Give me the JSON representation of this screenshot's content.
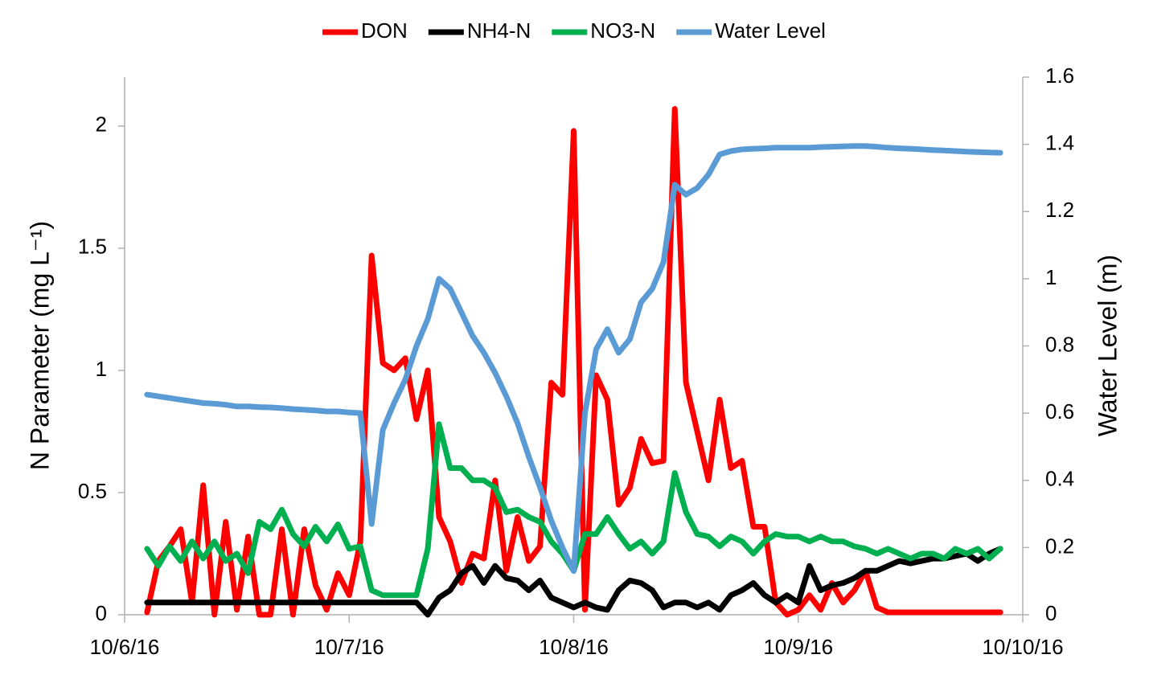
{
  "chart_data": {
    "type": "line",
    "ylabel": "N Parameter (mg L⁻¹)",
    "y2label": "Water Level (m)",
    "xlim": [
      0,
      4
    ],
    "xticks": [
      {
        "value": 0,
        "label": "10/6/16"
      },
      {
        "value": 1,
        "label": "10/7/16"
      },
      {
        "value": 2,
        "label": "10/8/16"
      },
      {
        "value": 3,
        "label": "10/9/16"
      },
      {
        "value": 4,
        "label": "10/10/16"
      }
    ],
    "ylim": [
      0,
      2.2
    ],
    "yticks": [
      0,
      0.5,
      1,
      1.5,
      2
    ],
    "y2lim": [
      0,
      1.6
    ],
    "y2ticks": [
      0,
      0.2,
      0.4,
      0.6,
      0.8,
      1,
      1.2,
      1.4,
      1.6
    ],
    "legend": "top",
    "x": [
      0.1,
      0.15,
      0.2,
      0.25,
      0.3,
      0.35,
      0.4,
      0.45,
      0.5,
      0.55,
      0.6,
      0.65,
      0.7,
      0.75,
      0.8,
      0.85,
      0.9,
      0.95,
      1.0,
      1.05,
      1.1,
      1.15,
      1.2,
      1.25,
      1.3,
      1.35,
      1.4,
      1.45,
      1.5,
      1.55,
      1.6,
      1.65,
      1.7,
      1.75,
      1.8,
      1.85,
      1.9,
      1.95,
      2.0,
      2.05,
      2.1,
      2.15,
      2.2,
      2.25,
      2.3,
      2.35,
      2.4,
      2.45,
      2.5,
      2.55,
      2.6,
      2.65,
      2.7,
      2.75,
      2.8,
      2.85,
      2.9,
      2.95,
      3.0,
      3.05,
      3.1,
      3.15,
      3.2,
      3.25,
      3.3,
      3.35,
      3.4,
      3.45,
      3.5,
      3.55,
      3.6,
      3.65,
      3.7,
      3.75,
      3.8,
      3.85,
      3.9
    ],
    "series": [
      {
        "name": "DON",
        "color": "#ff0000",
        "values": [
          0.01,
          0.22,
          0.28,
          0.35,
          0.05,
          0.53,
          0,
          0.38,
          0.02,
          0.32,
          0,
          0,
          0.35,
          0,
          0.35,
          0.12,
          0.02,
          0.17,
          0.08,
          0.3,
          1.47,
          1.03,
          1,
          1.05,
          0.8,
          1,
          0.4,
          0.3,
          0.13,
          0.25,
          0.23,
          0.55,
          0.18,
          0.4,
          0.22,
          0.28,
          0.95,
          0.9,
          1.98,
          0.02,
          0.98,
          0.88,
          0.45,
          0.52,
          0.72,
          0.62,
          0.63,
          2.07,
          0.95,
          0.75,
          0.55,
          0.88,
          0.6,
          0.63,
          0.36,
          0.36,
          0.05,
          0,
          0.02,
          0.08,
          0.02,
          0.13,
          0.05,
          0.1,
          0.18,
          0.03,
          0.01,
          0.01,
          0.01,
          0.01,
          0.01,
          0.01,
          0.01,
          0.01,
          0.01,
          0.01,
          0.01
        ]
      },
      {
        "name": "NH4-N",
        "color": "#000000",
        "values": [
          0.05,
          0.05,
          0.05,
          0.05,
          0.05,
          0.05,
          0.05,
          0.05,
          0.05,
          0.05,
          0.05,
          0.05,
          0.05,
          0.05,
          0.05,
          0.05,
          0.05,
          0.05,
          0.05,
          0.05,
          0.05,
          0.05,
          0.05,
          0.05,
          0.05,
          0,
          0.07,
          0.1,
          0.17,
          0.2,
          0.13,
          0.2,
          0.15,
          0.14,
          0.1,
          0.14,
          0.07,
          0.05,
          0.03,
          0.05,
          0.03,
          0.02,
          0.1,
          0.14,
          0.13,
          0.1,
          0.03,
          0.05,
          0.05,
          0.03,
          0.05,
          0.02,
          0.08,
          0.1,
          0.13,
          0.08,
          0.05,
          0.08,
          0.05,
          0.2,
          0.1,
          0.12,
          0.13,
          0.15,
          0.18,
          0.18,
          0.2,
          0.22,
          0.21,
          0.22,
          0.23,
          0.23,
          0.24,
          0.25,
          0.22,
          0.25,
          0.27
        ]
      },
      {
        "name": "NO3-N",
        "color": "#00b050",
        "values": [
          0.27,
          0.2,
          0.28,
          0.22,
          0.3,
          0.23,
          0.3,
          0.22,
          0.25,
          0.17,
          0.38,
          0.35,
          0.43,
          0.33,
          0.28,
          0.36,
          0.3,
          0.37,
          0.27,
          0.28,
          0.1,
          0.08,
          0.08,
          0.08,
          0.08,
          0.27,
          0.78,
          0.6,
          0.6,
          0.55,
          0.55,
          0.52,
          0.42,
          0.43,
          0.4,
          0.38,
          0.3,
          0.25,
          0.18,
          0.33,
          0.33,
          0.4,
          0.33,
          0.27,
          0.3,
          0.25,
          0.3,
          0.58,
          0.42,
          0.33,
          0.32,
          0.28,
          0.32,
          0.3,
          0.25,
          0.3,
          0.33,
          0.32,
          0.32,
          0.3,
          0.32,
          0.3,
          0.3,
          0.28,
          0.27,
          0.25,
          0.27,
          0.25,
          0.23,
          0.25,
          0.25,
          0.23,
          0.27,
          0.25,
          0.27,
          0.23,
          0.27
        ]
      },
      {
        "name": "Water Level",
        "color": "#5b9bd5",
        "axis": "y2",
        "values": [
          0.655,
          0.65,
          0.645,
          0.64,
          0.635,
          0.63,
          0.628,
          0.625,
          0.62,
          0.62,
          0.618,
          0.617,
          0.615,
          0.612,
          0.61,
          0.608,
          0.605,
          0.605,
          0.602,
          0.6,
          0.27,
          0.55,
          0.63,
          0.7,
          0.8,
          0.88,
          1.0,
          0.97,
          0.9,
          0.83,
          0.78,
          0.72,
          0.65,
          0.57,
          0.47,
          0.38,
          0.28,
          0.2,
          0.13,
          0.6,
          0.79,
          0.85,
          0.78,
          0.82,
          0.93,
          0.97,
          1.05,
          1.28,
          1.25,
          1.27,
          1.31,
          1.37,
          1.38,
          1.385,
          1.387,
          1.388,
          1.39,
          1.39,
          1.39,
          1.39,
          1.392,
          1.393,
          1.394,
          1.395,
          1.395,
          1.393,
          1.39,
          1.388,
          1.387,
          1.385,
          1.383,
          1.382,
          1.38,
          1.378,
          1.377,
          1.376,
          1.375
        ]
      }
    ]
  }
}
